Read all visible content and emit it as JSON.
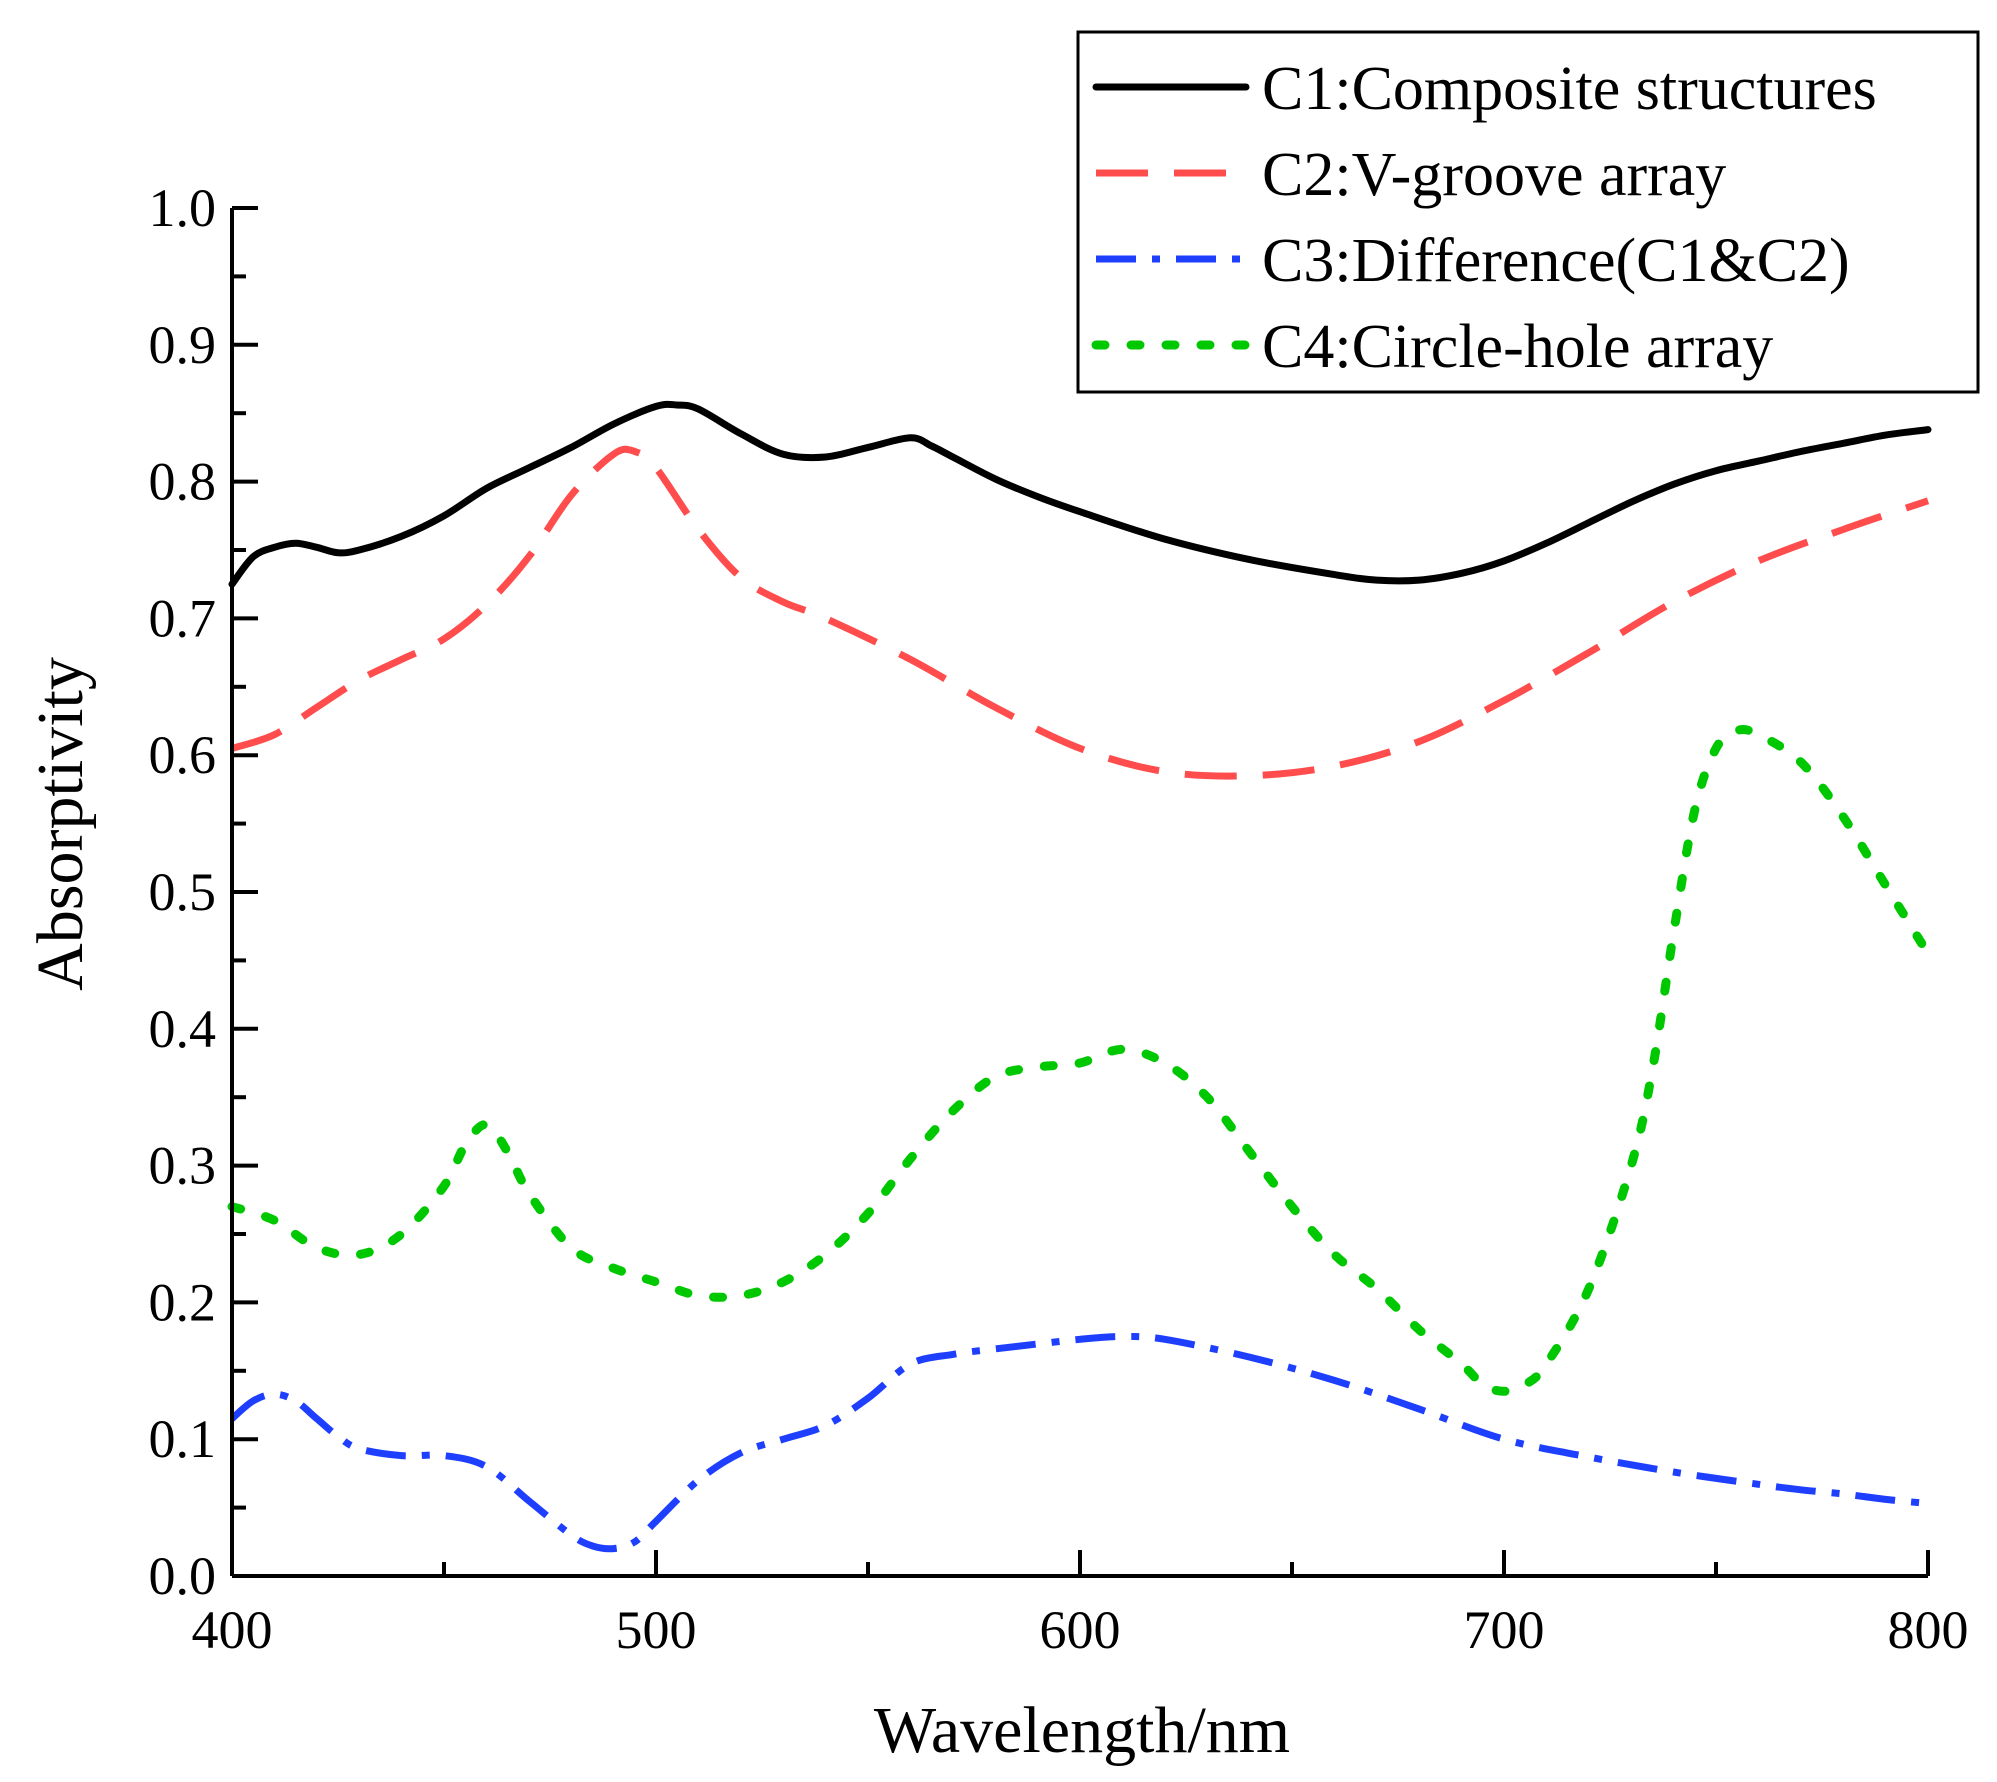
{
  "chart_data": {
    "type": "line",
    "xlabel": "Wavelength/nm",
    "ylabel": "Absorptivity",
    "xlim": [
      400,
      800
    ],
    "ylim": [
      0.0,
      1.0
    ],
    "x_ticks": [
      400,
      500,
      600,
      700,
      800
    ],
    "x_tick_labels": [
      "400",
      "500",
      "600",
      "700",
      "800"
    ],
    "y_ticks": [
      0.0,
      0.1,
      0.2,
      0.3,
      0.4,
      0.5,
      0.6,
      0.7,
      0.8,
      0.9,
      1.0
    ],
    "y_tick_labels": [
      "0.0",
      "0.1",
      "0.2",
      "0.3",
      "0.4",
      "0.5",
      "0.6",
      "0.7",
      "0.8",
      "0.9",
      "1.0"
    ],
    "grid": false,
    "legend_position": "top-right",
    "series": [
      {
        "name": "C1:Composite structures",
        "color": "#000000",
        "style": "solid",
        "x": [
          400,
          405,
          410,
          415,
          420,
          425,
          430,
          440,
          450,
          460,
          470,
          480,
          490,
          500,
          505,
          510,
          520,
          530,
          540,
          550,
          560,
          565,
          570,
          580,
          590,
          600,
          620,
          640,
          660,
          670,
          680,
          690,
          700,
          710,
          720,
          730,
          740,
          750,
          760,
          770,
          780,
          790,
          800
        ],
        "y": [
          0.725,
          0.745,
          0.752,
          0.755,
          0.752,
          0.748,
          0.75,
          0.76,
          0.775,
          0.795,
          0.81,
          0.825,
          0.842,
          0.855,
          0.856,
          0.853,
          0.835,
          0.82,
          0.818,
          0.825,
          0.832,
          0.826,
          0.818,
          0.802,
          0.789,
          0.778,
          0.758,
          0.743,
          0.732,
          0.728,
          0.728,
          0.733,
          0.742,
          0.755,
          0.77,
          0.785,
          0.798,
          0.808,
          0.815,
          0.822,
          0.828,
          0.834,
          0.838
        ]
      },
      {
        "name": "C2:V-groove array",
        "color": "#ff4c4c",
        "style": "dashed",
        "x": [
          400,
          410,
          420,
          430,
          440,
          450,
          460,
          470,
          480,
          490,
          495,
          500,
          510,
          520,
          530,
          540,
          560,
          580,
          600,
          620,
          640,
          660,
          680,
          700,
          720,
          740,
          760,
          780,
          800
        ],
        "y": [
          0.605,
          0.615,
          0.635,
          0.655,
          0.67,
          0.685,
          0.71,
          0.745,
          0.79,
          0.82,
          0.822,
          0.81,
          0.765,
          0.73,
          0.712,
          0.7,
          0.67,
          0.635,
          0.605,
          0.588,
          0.585,
          0.592,
          0.61,
          0.64,
          0.675,
          0.712,
          0.742,
          0.765,
          0.786
        ]
      },
      {
        "name": "C3:Difference(C1&C2)",
        "color": "#1f3fff",
        "style": "dashdot",
        "x": [
          400,
          405,
          410,
          415,
          420,
          425,
          430,
          440,
          450,
          460,
          470,
          480,
          485,
          490,
          495,
          500,
          510,
          520,
          530,
          540,
          550,
          560,
          570,
          580,
          600,
          610,
          620,
          640,
          660,
          680,
          700,
          720,
          740,
          760,
          770,
          780,
          790,
          800
        ],
        "y": [
          0.115,
          0.128,
          0.133,
          0.128,
          0.115,
          0.102,
          0.093,
          0.088,
          0.088,
          0.08,
          0.055,
          0.03,
          0.022,
          0.02,
          0.025,
          0.04,
          0.07,
          0.09,
          0.1,
          0.11,
          0.13,
          0.155,
          0.162,
          0.166,
          0.173,
          0.175,
          0.173,
          0.16,
          0.143,
          0.122,
          0.1,
          0.087,
          0.076,
          0.067,
          0.063,
          0.06,
          0.056,
          0.053
        ]
      },
      {
        "name": "C4:Circle-hole array",
        "color": "#00c800",
        "style": "dotted",
        "x": [
          400,
          410,
          420,
          430,
          440,
          450,
          455,
          460,
          465,
          470,
          480,
          490,
          500,
          510,
          520,
          530,
          540,
          550,
          560,
          570,
          580,
          590,
          600,
          610,
          620,
          630,
          640,
          650,
          660,
          670,
          680,
          690,
          695,
          700,
          705,
          710,
          720,
          730,
          735,
          740,
          745,
          750,
          755,
          760,
          770,
          780,
          790,
          800
        ],
        "y": [
          0.27,
          0.26,
          0.24,
          0.235,
          0.25,
          0.285,
          0.315,
          0.33,
          0.31,
          0.28,
          0.24,
          0.225,
          0.215,
          0.205,
          0.205,
          0.215,
          0.235,
          0.265,
          0.305,
          0.34,
          0.365,
          0.372,
          0.375,
          0.385,
          0.375,
          0.35,
          0.31,
          0.27,
          0.235,
          0.21,
          0.18,
          0.155,
          0.14,
          0.135,
          0.14,
          0.155,
          0.21,
          0.3,
          0.37,
          0.47,
          0.56,
          0.605,
          0.618,
          0.615,
          0.595,
          0.555,
          0.505,
          0.455
        ]
      }
    ]
  }
}
